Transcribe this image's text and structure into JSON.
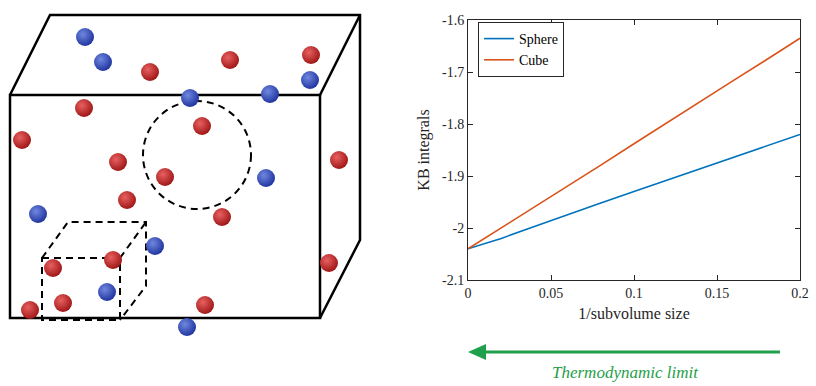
{
  "chart_data": {
    "type": "line",
    "x_label": "1/subvolume size",
    "y_label": "KB integrals",
    "annotation": "Thermodynamic limit",
    "x": [
      0,
      0.02,
      0.04,
      0.06,
      0.08,
      0.1,
      0.12,
      0.14,
      0.16,
      0.18,
      0.2
    ],
    "series": [
      {
        "name": "Sphere",
        "color": "#0072bd",
        "values": [
          -2.04,
          -2.02,
          -1.997,
          -1.974,
          -1.952,
          -1.93,
          -1.908,
          -1.886,
          -1.864,
          -1.842,
          -1.82
        ]
      },
      {
        "name": "Cube",
        "color": "#d95319",
        "values": [
          -2.04,
          -2.0,
          -1.96,
          -1.92,
          -1.879,
          -1.838,
          -1.797,
          -1.757,
          -1.716,
          -1.676,
          -1.635
        ]
      }
    ],
    "xlim": [
      0,
      0.2
    ],
    "xticks": [
      0,
      0.05,
      0.1,
      0.15,
      0.2
    ],
    "ylim": [
      -2.1,
      -1.6
    ],
    "yticks": [
      -2.1,
      -2,
      -1.9,
      -1.8,
      -1.7,
      -1.6
    ],
    "grid": false,
    "legend": "upper left"
  }
}
